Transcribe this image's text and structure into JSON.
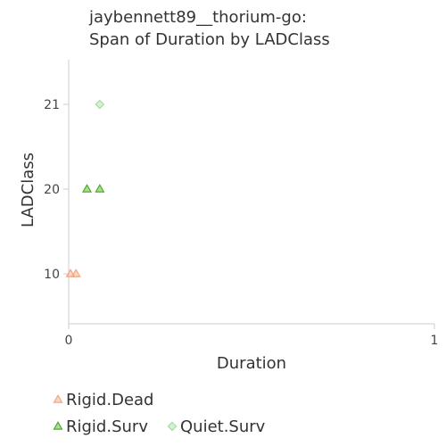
{
  "chart_data": {
    "type": "scatter",
    "title": [
      "jaybennett89__thorium-go:",
      "Span of Duration by LADClass"
    ],
    "xlabel": "Duration",
    "ylabel": "LADClass",
    "xlim": [
      0,
      1
    ],
    "x_ticks": [
      0,
      1
    ],
    "y_ticks": [
      10,
      20,
      21
    ],
    "y_categories": [
      10,
      20,
      21
    ],
    "grid": false,
    "legend_position": "bottom",
    "legend": [
      {
        "name": "Rigid.Dead",
        "marker": "triangle",
        "color": "#f4a582"
      },
      {
        "name": "Rigid.Surv",
        "marker": "triangle",
        "color": "#4dac26"
      },
      {
        "name": "Quiet.Surv",
        "marker": "diamond",
        "color": "#a6dba0"
      }
    ],
    "series": [
      {
        "name": "Rigid.Dead",
        "marker": "triangle",
        "color": "#f4a582",
        "points": [
          {
            "x": 0.005,
            "y": 10
          },
          {
            "x": 0.02,
            "y": 10
          }
        ]
      },
      {
        "name": "Rigid.Surv",
        "marker": "triangle",
        "color": "#4dac26",
        "points": [
          {
            "x": 0.05,
            "y": 20
          },
          {
            "x": 0.085,
            "y": 20
          }
        ]
      },
      {
        "name": "Quiet.Surv",
        "marker": "diamond",
        "color": "#a6dba0",
        "points": [
          {
            "x": 0.085,
            "y": 21
          }
        ]
      }
    ]
  }
}
